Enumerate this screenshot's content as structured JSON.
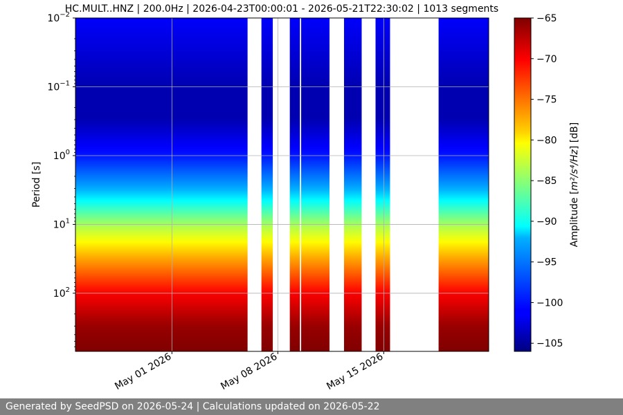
{
  "chart_data": {
    "type": "heatmap",
    "title": "HC.MULT..HNZ | 200.0Hz | 2026-04-23T00:00:01 - 2026-05-21T22:30:02 | 1013 segments",
    "xlabel": "",
    "ylabel": "Period [s]",
    "x_range": [
      "2026-04-24T15:00",
      "2026-05-21T22:30"
    ],
    "x_tick_labels": [
      "May 01 2026",
      "May 08 2026",
      "May 15 2026"
    ],
    "x_tick_dates": [
      "2026-05-01",
      "2026-05-08",
      "2026-05-15"
    ],
    "y_scale": "log",
    "y_inverted": true,
    "y_range": [
      0.01,
      700
    ],
    "y_ticks": [
      0.01,
      0.1,
      1,
      10,
      100
    ],
    "y_tick_labels": [
      {
        "base": "10",
        "exp": "−2"
      },
      {
        "base": "10",
        "exp": "−1"
      },
      {
        "base": "10",
        "exp": "0"
      },
      {
        "base": "10",
        "exp": "1"
      },
      {
        "base": "10",
        "exp": "2"
      }
    ],
    "grid": true,
    "colorbar": {
      "label_prefix": "Amplitude [",
      "label_units": "m²/s⁴/Hz",
      "label_suffix": "] [dB]",
      "range": [
        -106,
        -65
      ],
      "ticks": [
        -65,
        -70,
        -75,
        -80,
        -85,
        -90,
        -95,
        -100,
        -105
      ],
      "colormap": "jet"
    },
    "data_gaps": [
      [
        "2026-05-06T00:00",
        "2026-05-06T22:00"
      ],
      [
        "2026-05-07T16:00",
        "2026-05-08T19:00"
      ],
      [
        "2026-05-09T11:00",
        "2026-05-09T13:00"
      ],
      [
        "2026-05-11T10:00",
        "2026-05-12T09:00"
      ],
      [
        "2026-05-13T13:00",
        "2026-05-14T11:00"
      ],
      [
        "2026-05-15T10:00",
        "2026-05-18T15:00"
      ]
    ],
    "spectrum_profile_db": [
      {
        "period": 0.01,
        "db": -101
      },
      {
        "period": 0.1,
        "db": -104
      },
      {
        "period": 0.3,
        "db": -104
      },
      {
        "period": 1,
        "db": -100
      },
      {
        "period": 3,
        "db": -94
      },
      {
        "period": 10,
        "db": -84
      },
      {
        "period": 30,
        "db": -77
      },
      {
        "period": 100,
        "db": -70
      },
      {
        "period": 300,
        "db": -66
      },
      {
        "period": 700,
        "db": -65
      }
    ]
  },
  "footer": {
    "text": "Generated by SeedPSD on 2026-05-24 | Calculations updated on 2026-05-22"
  }
}
